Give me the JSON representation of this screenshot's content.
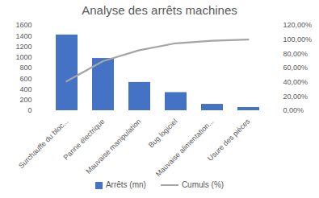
{
  "chart_data": {
    "type": "bar",
    "title": "Analyse des arrêts machines",
    "categories": [
      "Surchauffe du bloc...",
      "Panne électrique",
      "Mauvaise manipulation",
      "Bug logiciel",
      "Mauvaise alimentation...",
      "Usure des pièces"
    ],
    "series": [
      {
        "name": "Arrêts (mn)",
        "type": "bar",
        "color": "#4472c4",
        "values": [
          1420,
          980,
          530,
          340,
          120,
          60
        ]
      },
      {
        "name": "Cumuls (%)",
        "type": "line",
        "color": "#a5a5a5",
        "axis": "y2",
        "values": [
          41.2,
          69.6,
          85,
          94.8,
          98.3,
          100
        ]
      }
    ],
    "ylim": [
      0,
      1600
    ],
    "yticks": [
      0,
      200,
      400,
      600,
      800,
      1000,
      1200,
      1400,
      1600
    ],
    "y2lim": [
      0,
      120
    ],
    "y2ticks": [
      {
        "value": 0,
        "label": "0,00%"
      },
      {
        "value": 20,
        "label": "20,00%"
      },
      {
        "value": 40,
        "label": "40,00%"
      },
      {
        "value": 60,
        "label": "60,00%"
      },
      {
        "value": 80,
        "label": "80,00%"
      },
      {
        "value": 100,
        "label": "100,00%"
      },
      {
        "value": 120,
        "label": "120,00%"
      }
    ],
    "grid": false,
    "legend": "bottom"
  }
}
